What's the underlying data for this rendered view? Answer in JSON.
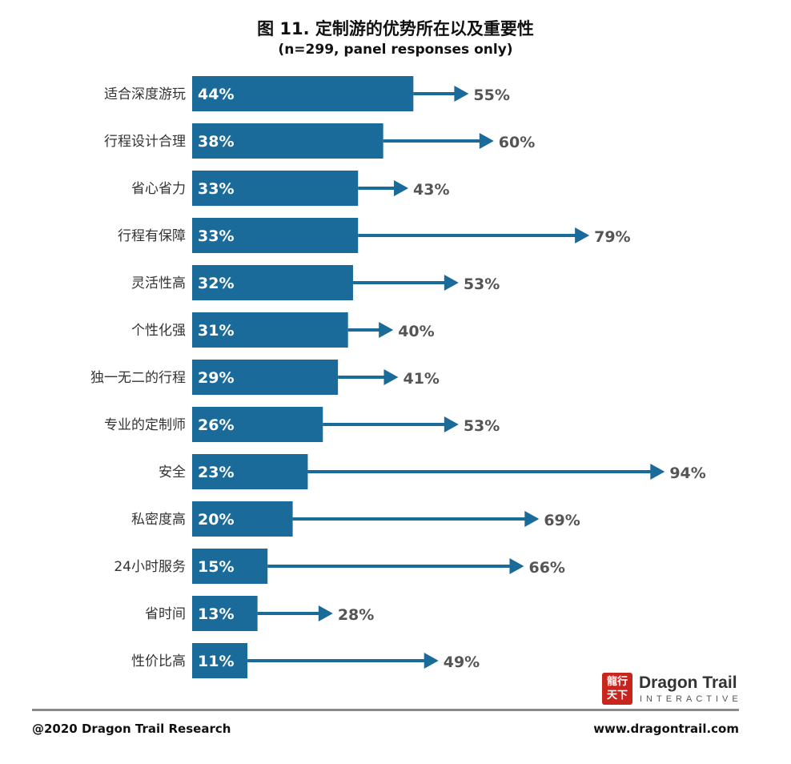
{
  "header": {
    "title": "图 11. 定制游的优势所在以及重要性",
    "subtitle": "(n=299, panel responses only)"
  },
  "chart_data": {
    "type": "bar",
    "orientation": "horizontal",
    "categories": [
      "适合深度游玩",
      "行程设计合理",
      "省心省力",
      "行程有保障",
      "灵活性高",
      "个性化强",
      "独一无二的行程",
      "专业的定制师",
      "安全",
      "私密度高",
      "24小时服务",
      "省时间",
      "性价比高"
    ],
    "series": [
      {
        "values": [
          44,
          38,
          33,
          33,
          32,
          31,
          29,
          26,
          23,
          20,
          15,
          13,
          11
        ],
        "color": "#1a6a9a"
      },
      {
        "values": [
          55,
          60,
          43,
          79,
          53,
          40,
          41,
          53,
          94,
          69,
          66,
          28,
          49
        ],
        "color": "#1a6a9a"
      }
    ],
    "bar_labels": [
      "44%",
      "38%",
      "33%",
      "33%",
      "32%",
      "31%",
      "29%",
      "26%",
      "23%",
      "20%",
      "15%",
      "13%",
      "11%"
    ],
    "arrow_labels": [
      "55%",
      "60%",
      "43%",
      "79%",
      "53%",
      "40%",
      "41%",
      "53%",
      "94%",
      "69%",
      "66%",
      "28%",
      "49%"
    ],
    "unit": "%",
    "xlim": [
      0,
      100
    ],
    "grid": false
  },
  "logo": {
    "mark": "龍行天下",
    "name": "Dragon Trail",
    "sub": "INTERACTIVE"
  },
  "footer": {
    "left": "@2020 Dragon Trail Research",
    "right": "www.dragontrail.com"
  }
}
